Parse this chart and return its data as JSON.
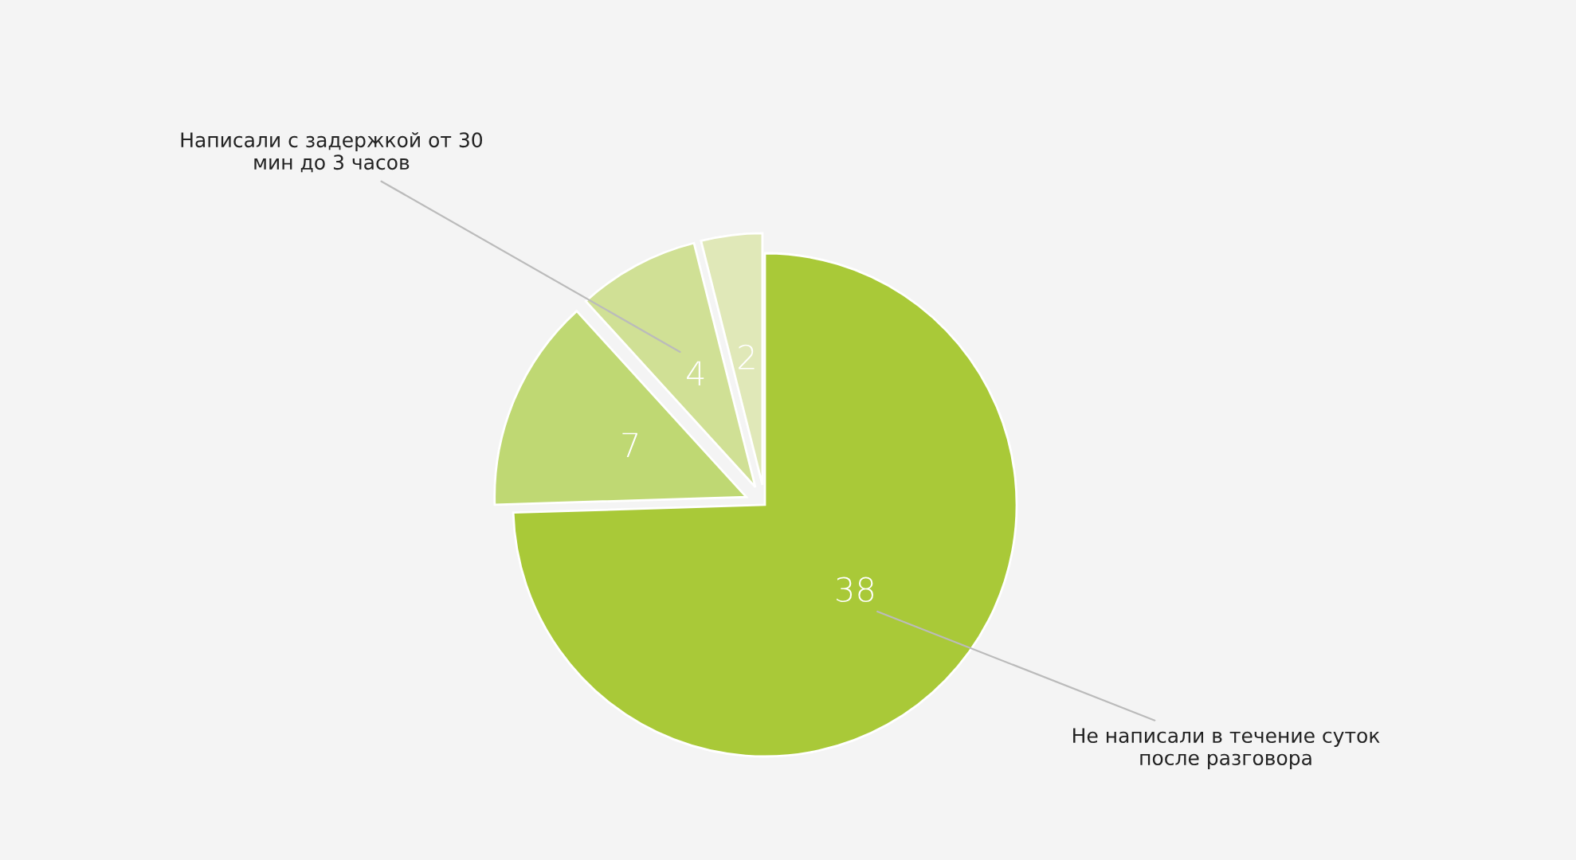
{
  "chart_data": {
    "type": "pie",
    "categories": [
      "Не написали в течение суток после разговора",
      null,
      "Написали с задержкой от 30 мин до 3 часов",
      null
    ],
    "values": [
      38,
      7,
      4,
      2
    ],
    "colors": [
      "#a9c938",
      "#bfd873",
      "#d0e095",
      "#e0e8b8"
    ],
    "data_labels": true
  }
}
